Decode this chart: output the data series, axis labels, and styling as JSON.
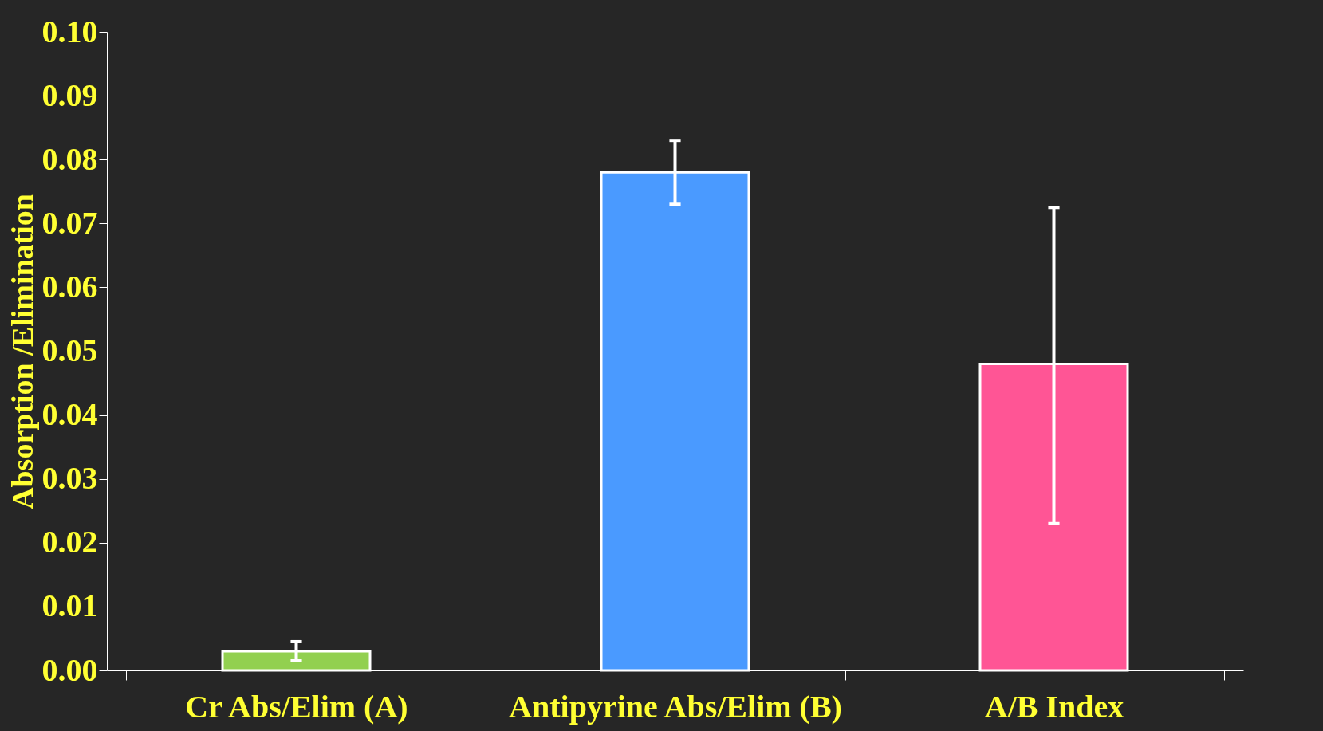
{
  "chart_data": {
    "type": "bar",
    "ylabel": "Absorption /Elimination",
    "categories": [
      "Cr Abs/Elim (A)",
      "Antipyrine Abs/Elim (B)",
      "A/B Index"
    ],
    "values": [
      0.003,
      0.078,
      0.048
    ],
    "colors": [
      "#92d050",
      "#4a9aff",
      "#ff5595"
    ],
    "errors": [
      0.0015,
      [
        0.073,
        0.083
      ],
      [
        0.023,
        0.0725
      ]
    ],
    "ylim": [
      0,
      0.1
    ],
    "yticks": [
      {
        "value": 0,
        "label": "0.00"
      },
      0.01,
      0.02,
      0.03,
      0.04,
      0.05,
      0.06,
      0.07,
      0.08,
      0.09,
      {
        "value": 0.1,
        "label": "0.10"
      }
    ],
    "grid": false
  }
}
